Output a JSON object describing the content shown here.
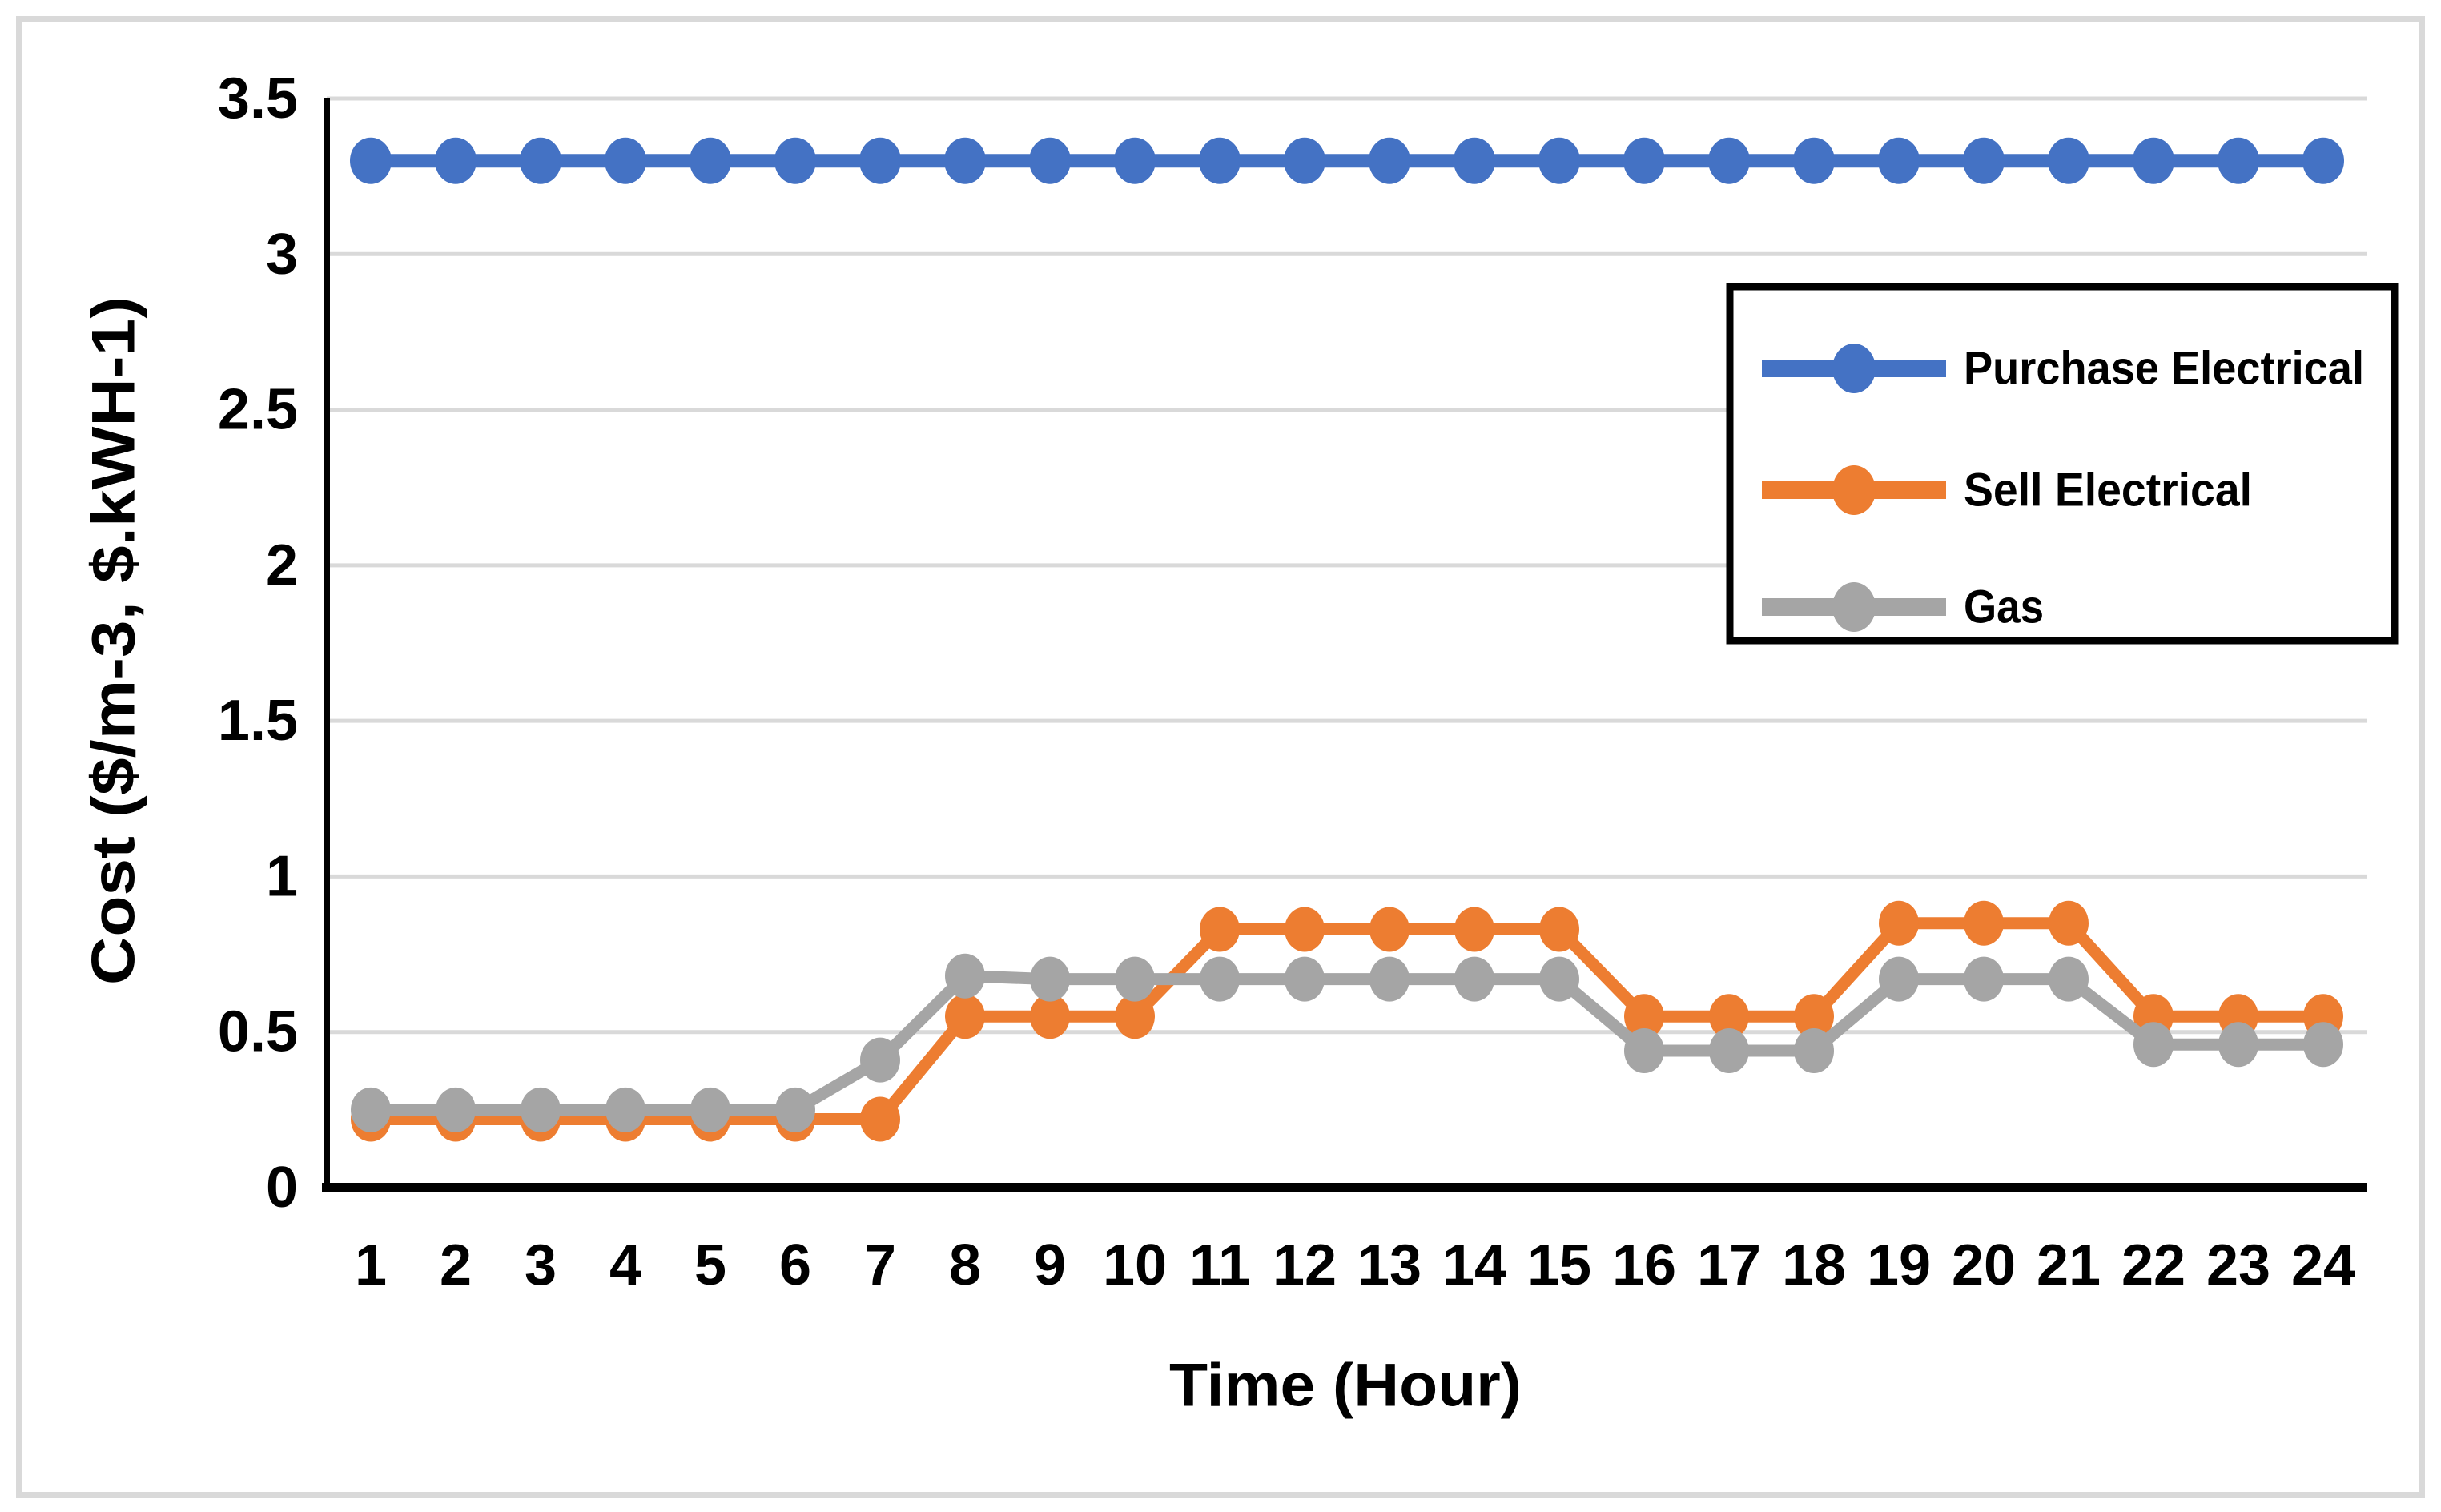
{
  "figure": {
    "background_color": "#ffffff",
    "outer_border_color": "#d9d9d9"
  },
  "chart_data": {
    "type": "line",
    "title": "",
    "xlabel": "Time (Hour)",
    "ylabel": "Cost ($/m-3, $.kWH-1)",
    "x": [
      1,
      2,
      3,
      4,
      5,
      6,
      7,
      8,
      9,
      10,
      11,
      12,
      13,
      14,
      15,
      16,
      17,
      18,
      19,
      20,
      21,
      22,
      23,
      24
    ],
    "x_tick_labels": [
      "1",
      "2",
      "3",
      "4",
      "5",
      "6",
      "7",
      "8",
      "9",
      "10",
      "11",
      "12",
      "13",
      "14",
      "15",
      "16",
      "17",
      "18",
      "19",
      "20",
      "21",
      "22",
      "23",
      "24"
    ],
    "y_tick_labels": [
      "3.5",
      "3",
      "2.5",
      "2",
      "1.5",
      "1",
      "0.5",
      "0"
    ],
    "ylim": [
      0,
      3.5
    ],
    "y_gridline_step": 0.5,
    "grid": "horizontal",
    "gridline_color": "#d9d9d9",
    "axis_color": "#000000",
    "legend": {
      "position": "top-right",
      "border_color": "#000000",
      "background_color": "#ffffff"
    },
    "series": [
      {
        "name": "Purchase Electrical",
        "color": "#4472C4",
        "values": [
          3.3,
          3.3,
          3.3,
          3.3,
          3.3,
          3.3,
          3.3,
          3.3,
          3.3,
          3.3,
          3.3,
          3.3,
          3.3,
          3.3,
          3.3,
          3.3,
          3.3,
          3.3,
          3.3,
          3.3,
          3.3,
          3.3,
          3.3,
          3.3
        ]
      },
      {
        "name": "Sell Electrical",
        "color": "#ED7D31",
        "values": [
          0.22,
          0.22,
          0.22,
          0.22,
          0.22,
          0.22,
          0.22,
          0.55,
          0.55,
          0.55,
          0.83,
          0.83,
          0.83,
          0.83,
          0.83,
          0.55,
          0.55,
          0.55,
          0.85,
          0.85,
          0.85,
          0.55,
          0.55,
          0.55
        ]
      },
      {
        "name": "Gas",
        "color": "#A5A5A5",
        "values": [
          0.25,
          0.25,
          0.25,
          0.25,
          0.25,
          0.25,
          0.41,
          0.68,
          0.67,
          0.67,
          0.67,
          0.67,
          0.67,
          0.67,
          0.67,
          0.44,
          0.44,
          0.44,
          0.67,
          0.67,
          0.67,
          0.46,
          0.46,
          0.46
        ]
      }
    ]
  }
}
